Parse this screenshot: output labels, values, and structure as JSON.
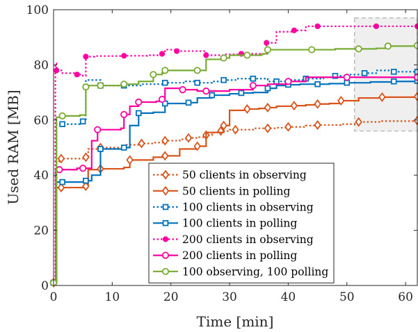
{
  "chart_data": {
    "type": "line",
    "title": "",
    "xlabel": "Time [min]",
    "ylabel": "Used RAM [MB]",
    "xlim": [
      0,
      62
    ],
    "ylim": [
      0,
      100
    ],
    "xticks": [
      0,
      10,
      20,
      30,
      40,
      50,
      60
    ],
    "yticks": [
      0,
      20,
      40,
      60,
      80,
      100
    ],
    "grid": false,
    "legend_position": "bottom-center",
    "highlight_region": {
      "x": [
        51.3,
        62
      ],
      "y": [
        56,
        97
      ]
    },
    "series": [
      {
        "name": "50 clients in observing",
        "color": "#D95319",
        "line": "dotted",
        "marker": "diamond",
        "x": [
          0,
          0.5,
          1.3,
          2.2,
          5.5,
          5.9,
          8,
          12,
          15,
          17,
          19,
          21.5,
          23,
          24.5,
          26,
          27,
          28.5,
          30,
          31,
          34,
          36.5,
          38,
          40,
          43,
          45,
          49,
          52,
          56,
          62
        ],
        "y": [
          1,
          45,
          46,
          46,
          46.5,
          49.5,
          50,
          51,
          51.5,
          51.8,
          52.5,
          53,
          53.5,
          53.8,
          54.5,
          55.5,
          56,
          56.5,
          56.5,
          57,
          57,
          57.2,
          57.5,
          58,
          58.2,
          58.5,
          59.3,
          59.6,
          59.8
        ]
      },
      {
        "name": "50 clients in polling",
        "color": "#D95319",
        "line": "solid",
        "marker": "diamond",
        "x": [
          0,
          0.5,
          1.3,
          4.5,
          5.5,
          5.9,
          8,
          12,
          13,
          17,
          19,
          21.5,
          24.5,
          26,
          29,
          30,
          33,
          35,
          36.5,
          38,
          41,
          43,
          45,
          47,
          49,
          52,
          56,
          62
        ],
        "y": [
          1,
          35.5,
          35.5,
          35.5,
          36,
          42,
          42.3,
          42.8,
          45.5,
          46.5,
          47,
          49.5,
          50.5,
          55.5,
          58,
          63.5,
          64,
          64.2,
          64.5,
          65,
          65.2,
          65.5,
          65.8,
          66,
          67,
          68,
          68.3,
          68.5
        ]
      },
      {
        "name": "100 clients in observing",
        "color": "#0072BD",
        "line": "dotted",
        "marker": "square",
        "x": [
          0,
          0.5,
          1.5,
          4.5,
          5,
          5.5,
          8,
          11.5,
          12,
          15,
          19,
          22.5,
          24.5,
          27,
          29,
          31,
          34,
          36.5,
          38,
          40,
          43,
          46,
          48,
          50,
          53,
          55,
          58,
          62
        ],
        "y": [
          1,
          58.5,
          58.5,
          59,
          59.5,
          74.5,
          72.5,
          72.5,
          72.5,
          73,
          73.5,
          74,
          73.5,
          74,
          74.5,
          75,
          75,
          74,
          74,
          74.5,
          75,
          75.5,
          76,
          76.5,
          77,
          78,
          77.5,
          77.5
        ]
      },
      {
        "name": "100 clients in polling",
        "color": "#0072BD",
        "line": "solid",
        "marker": "square",
        "x": [
          0,
          0.5,
          1.5,
          3.5,
          5.5,
          6.5,
          8,
          11,
          12,
          13,
          14.5,
          17,
          19,
          21,
          23,
          24.5,
          27,
          30,
          32,
          34,
          36.5,
          38,
          40,
          42,
          45,
          47,
          50,
          54,
          58,
          62
        ],
        "y": [
          1,
          37.5,
          37.5,
          37.5,
          38,
          40,
          49.5,
          49.5,
          50,
          58,
          62.5,
          62.8,
          66,
          66,
          66.3,
          68,
          69,
          69.5,
          69.8,
          70,
          71.5,
          72.5,
          72.8,
          73,
          73,
          73.2,
          73.5,
          73.8,
          74,
          74.2
        ]
      },
      {
        "name": "200 clients in observing",
        "color": "#FF00A0",
        "line": "dotted",
        "marker": "circle",
        "x": [
          0,
          0.3,
          0.5,
          1.5,
          4,
          5,
          5.5,
          7,
          12,
          16,
          18.5,
          19,
          21,
          23,
          26,
          29,
          32,
          35,
          36.3,
          38,
          41,
          43,
          45,
          50,
          55,
          62
        ],
        "y": [
          1,
          80.5,
          78,
          77,
          76.5,
          76,
          83,
          83.2,
          83.3,
          83.5,
          84,
          85.5,
          85,
          85,
          83.5,
          83.8,
          84,
          84,
          88,
          92,
          92.5,
          94,
          94,
          94,
          94,
          94
        ]
      },
      {
        "name": "200 clients in polling",
        "color": "#FF00A0",
        "line": "solid",
        "marker": "circle",
        "x": [
          0,
          0.4,
          1,
          4,
          5,
          6.5,
          7.5,
          11.5,
          12,
          13,
          14.5,
          17.5,
          18.5,
          19,
          22,
          24.5,
          26,
          30,
          34,
          36.5,
          40,
          43,
          50,
          55,
          62
        ],
        "y": [
          1,
          42,
          42,
          42.5,
          42.5,
          52.5,
          56.5,
          57,
          62,
          65,
          66.5,
          66.8,
          67.5,
          71.5,
          71,
          70.5,
          70.5,
          71,
          72.5,
          73,
          74,
          75.5,
          75.5,
          75.5,
          75.5
        ]
      },
      {
        "name": "100 observing, 100 polling",
        "color": "#77AC30",
        "line": "solid",
        "marker": "circle",
        "x": [
          0,
          0.5,
          1.5,
          4.5,
          5.5,
          6,
          8,
          11,
          12,
          14.5,
          17,
          18.5,
          19,
          22,
          24.5,
          26,
          29,
          30,
          33,
          35.5,
          36.5,
          40,
          44,
          48,
          52,
          55,
          57,
          62
        ],
        "y": [
          1,
          61,
          61.5,
          61.8,
          72,
          72.5,
          72.5,
          72.5,
          73,
          74,
          76.5,
          77,
          78,
          78,
          78,
          82,
          82.5,
          83.5,
          83.5,
          84,
          85.5,
          85.5,
          85.5,
          85.8,
          85.8,
          86,
          86.8,
          87
        ]
      }
    ]
  }
}
